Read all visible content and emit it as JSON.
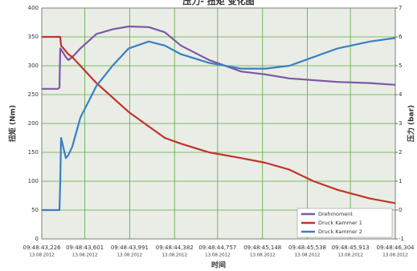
{
  "chart_data": {
    "type": "line",
    "title": "压力- 扭矩 变化图",
    "x_label": "时间",
    "y_label": "扭矩 (Nm)",
    "y2_label": "压力 (bar)",
    "x": [
      43.226,
      43.366,
      43.38,
      43.387,
      43.394,
      43.436,
      43.457,
      43.492,
      43.562,
      43.702,
      43.842,
      43.982,
      44.157,
      44.297,
      44.437,
      44.682,
      44.962,
      45.172,
      45.382,
      45.592,
      45.802,
      46.082,
      46.304
    ],
    "series": [
      {
        "name": "Drehmoment",
        "color": "#7e57a8",
        "axis": "y",
        "values": [
          260,
          260,
          262,
          330,
          328,
          315,
          310,
          315,
          330,
          355,
          363,
          368,
          367,
          358,
          335,
          310,
          290,
          285,
          278,
          275,
          272,
          270,
          267
        ]
      },
      {
        "name": "Druck Kammer 1",
        "color": "#c0342c",
        "axis": "y2",
        "values": [
          6,
          6,
          6,
          6,
          5.7,
          5.5,
          5.4,
          5.3,
          5.0,
          4.4,
          3.9,
          3.4,
          2.9,
          2.5,
          2.3,
          2.0,
          1.8,
          1.64,
          1.4,
          1.0,
          0.7,
          0.4,
          0.24
        ]
      },
      {
        "name": "Druck Kammer 2",
        "color": "#3a7fc4",
        "axis": "y2",
        "values": [
          0,
          0,
          0,
          1.0,
          2.5,
          1.8,
          1.9,
          2.2,
          3.2,
          4.3,
          5.0,
          5.6,
          5.84,
          5.7,
          5.4,
          5.1,
          4.9,
          4.9,
          5.0,
          5.3,
          5.6,
          5.84,
          5.96
        ]
      }
    ],
    "xlim": [
      43.226,
      46.304
    ],
    "xticks": [
      {
        "value": 43.226,
        "label": "09:48:43,226",
        "date": "13.08.2012"
      },
      {
        "value": 43.601,
        "label": "09:48:43,601",
        "date": "13.08.2012"
      },
      {
        "value": 43.991,
        "label": "09:48:43,991",
        "date": "13.08.2012"
      },
      {
        "value": 44.382,
        "label": "09:48:44,382",
        "date": "13.08.2012"
      },
      {
        "value": 44.757,
        "label": "09:48:44,757",
        "date": "13.08.2012"
      },
      {
        "value": 45.148,
        "label": "09:48:45,148",
        "date": "13.08.2012"
      },
      {
        "value": 45.538,
        "label": "09:48:45,538",
        "date": "13.08.2012"
      },
      {
        "value": 45.913,
        "label": "09:48:45,913",
        "date": "13.08.2012"
      },
      {
        "value": 46.304,
        "label": "09:48:46,304",
        "date": "13.08.2012"
      }
    ],
    "ylim": [
      0,
      400
    ],
    "yticks": [
      0,
      50,
      100,
      150,
      200,
      250,
      300,
      350,
      400
    ],
    "y2lim": [
      -1,
      7
    ],
    "y2ticks": [
      -1,
      0,
      1,
      2,
      3,
      4,
      5,
      6,
      7
    ],
    "grid": true,
    "grid_color": "#5aa83e",
    "legend": "lower right"
  }
}
